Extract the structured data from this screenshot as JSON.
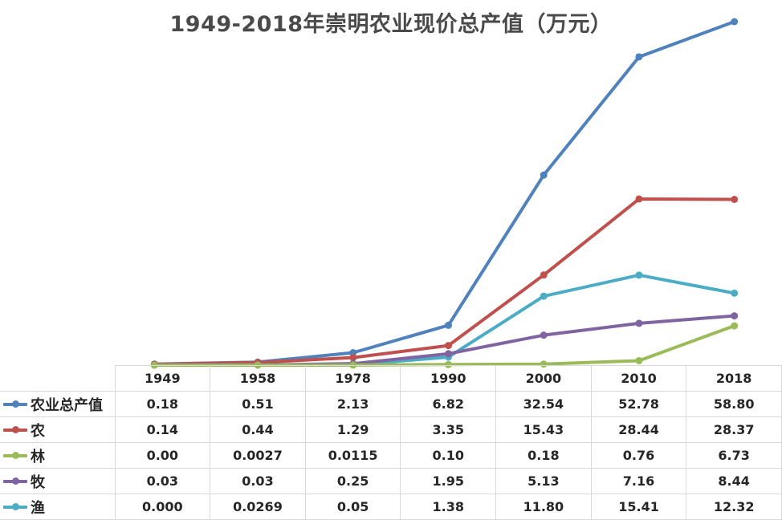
{
  "chart_data": {
    "type": "line",
    "title": "1949-2018年崇明农业现价总产值（万元）",
    "categories": [
      "1949",
      "1958",
      "1978",
      "1990",
      "2000",
      "2010",
      "2018"
    ],
    "series": [
      {
        "name": "农业总产值",
        "color": "#4f81bd",
        "values": [
          0.18,
          0.51,
          2.13,
          6.82,
          32.54,
          52.78,
          58.8
        ],
        "labels": [
          "0.18",
          "0.51",
          "2.13",
          "6.82",
          "32.54",
          "52.78",
          "58.80"
        ]
      },
      {
        "name": "农",
        "color": "#c0504d",
        "values": [
          0.14,
          0.44,
          1.29,
          3.35,
          15.43,
          28.44,
          28.37
        ],
        "labels": [
          "0.14",
          "0.44",
          "1.29",
          "3.35",
          "15.43",
          "28.44",
          "28.37"
        ]
      },
      {
        "name": "林",
        "color": "#9bbb59",
        "values": [
          0.0,
          0.0027,
          0.0115,
          0.1,
          0.18,
          0.76,
          6.73
        ],
        "labels": [
          "0.00",
          "0.0027",
          "0.0115",
          "0.10",
          "0.18",
          "0.76",
          "6.73"
        ]
      },
      {
        "name": "牧",
        "color": "#8064a2",
        "values": [
          0.03,
          0.03,
          0.25,
          1.95,
          5.13,
          7.16,
          8.44
        ],
        "labels": [
          "0.03",
          "0.03",
          "0.25",
          "1.95",
          "5.13",
          "7.16",
          "8.44"
        ]
      },
      {
        "name": "渔",
        "color": "#4bacc6",
        "values": [
          0.0,
          0.0269,
          0.05,
          1.38,
          11.8,
          15.41,
          12.32
        ],
        "labels": [
          "0.000",
          "0.0269",
          "0.05",
          "1.38",
          "11.80",
          "15.41",
          "12.32"
        ]
      }
    ],
    "ylim": [
      0,
      60
    ],
    "grid": false,
    "legend": "data-table"
  }
}
